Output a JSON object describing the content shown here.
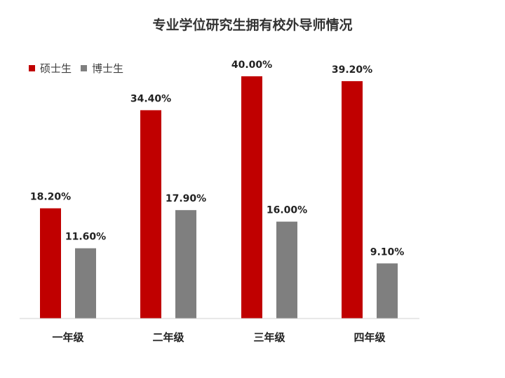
{
  "chart_data": {
    "type": "bar",
    "title": "专业学位研究生拥有校外导师情况",
    "categories": [
      "一年级",
      "二年级",
      "三年级",
      "四年级"
    ],
    "series": [
      {
        "name": "硕士生",
        "color": "#C00000",
        "values": [
          18.2,
          34.4,
          40.0,
          39.2
        ],
        "labels": [
          "18.20%",
          "34.40%",
          "40.00%",
          "39.20%"
        ]
      },
      {
        "name": "博士生",
        "color": "#7F7F7F",
        "values": [
          11.6,
          17.9,
          16.0,
          9.1
        ],
        "labels": [
          "11.60%",
          "17.90%",
          "16.00%",
          "9.10%"
        ]
      }
    ],
    "ylim": [
      0,
      45
    ],
    "grid": false,
    "legend_position": "top-left",
    "xlabel": "",
    "ylabel": ""
  }
}
